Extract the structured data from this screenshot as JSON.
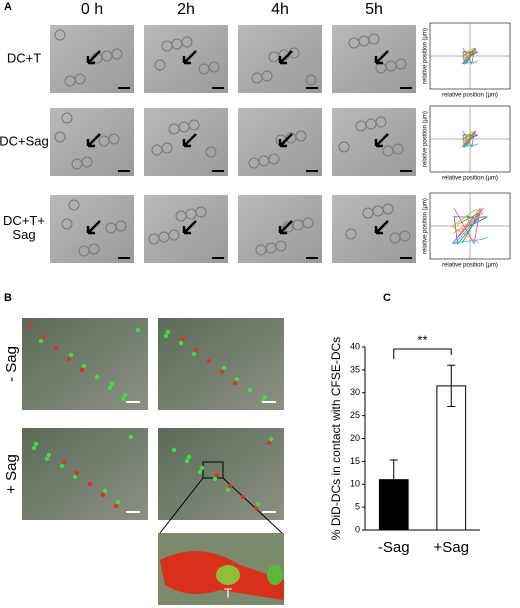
{
  "panel_labels": [
    "A",
    "B",
    "C"
  ],
  "panel_a": {
    "timepoints": [
      "0 h",
      "2h",
      "4h",
      "5h"
    ],
    "rows": [
      "DC+T",
      "DC+Sag",
      "DC+T+\nSag"
    ],
    "track_x_label": "relative position (µm)",
    "track_y_label": "relative position (µm)"
  },
  "panel_b": {
    "rows": [
      "- Sag",
      "+ Sag"
    ],
    "inset_label": "T"
  },
  "chart_data": {
    "type": "bar",
    "categories": [
      "-Sag",
      "+Sag"
    ],
    "values": [
      11,
      31.5
    ],
    "errors": [
      4.3,
      4.5
    ],
    "colors": [
      "#000000",
      "#ffffff"
    ],
    "ylabel": "% DiD-DCs in contact with CFSE-DCs",
    "ylim": [
      0,
      40
    ],
    "yticks": [
      0,
      5,
      10,
      15,
      20,
      25,
      30,
      35,
      40
    ],
    "annotation": "**"
  }
}
